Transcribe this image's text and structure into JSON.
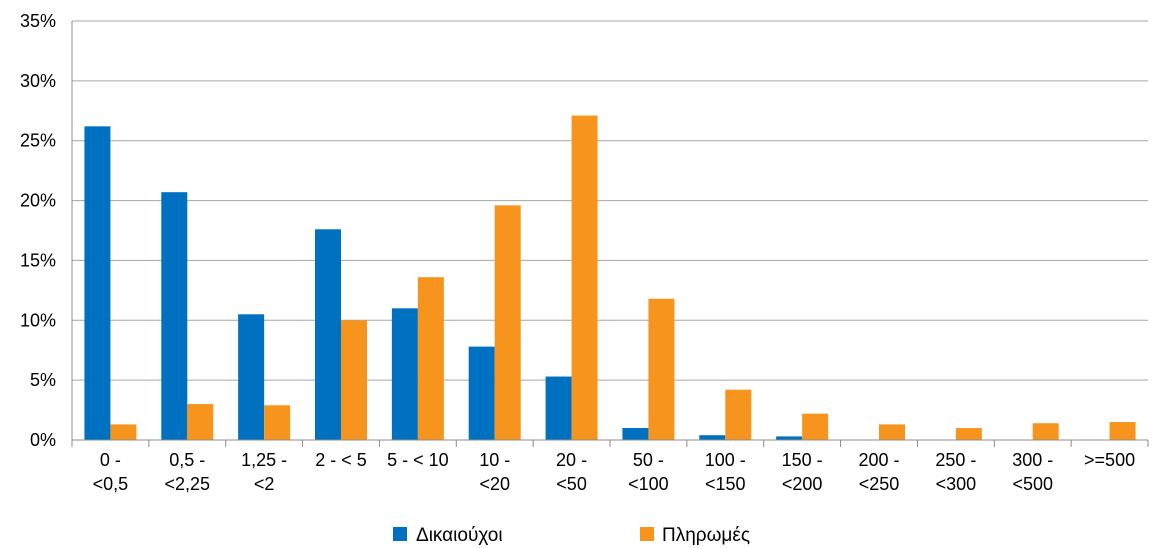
{
  "chart_data": {
    "type": "bar",
    "title": "",
    "xlabel": "",
    "ylabel": "",
    "ylim": [
      0,
      0.35
    ],
    "y_ticks": [
      "0%",
      "5%",
      "10%",
      "15%",
      "20%",
      "25%",
      "30%",
      "35%"
    ],
    "grid": true,
    "legend_position": "bottom",
    "categories": [
      [
        "0 -",
        "<0,5"
      ],
      [
        "0,5 -",
        "<2,25"
      ],
      [
        "1,25 -",
        "<2"
      ],
      [
        "2 - < 5"
      ],
      [
        "5 - < 10"
      ],
      [
        "10 -",
        "<20"
      ],
      [
        "20 -",
        "<50"
      ],
      [
        "50 -",
        "<100"
      ],
      [
        "100 -",
        "<150"
      ],
      [
        "150 -",
        "<200"
      ],
      [
        "200 -",
        "<250"
      ],
      [
        "250 -",
        "<300"
      ],
      [
        "300 -",
        "<500"
      ],
      [
        ">=500"
      ]
    ],
    "series": [
      {
        "name": "Δικαιούχοι",
        "color": "#0070C0",
        "values": [
          0.262,
          0.207,
          0.105,
          0.176,
          0.11,
          0.078,
          0.053,
          0.01,
          0.004,
          0.003,
          0,
          0,
          0,
          0
        ]
      },
      {
        "name": "Πληρωμές",
        "color": "#F7941D",
        "values": [
          0.013,
          0.03,
          0.029,
          0.1,
          0.136,
          0.196,
          0.271,
          0.118,
          0.042,
          0.022,
          0.013,
          0.01,
          0.014,
          0.015
        ]
      }
    ]
  }
}
